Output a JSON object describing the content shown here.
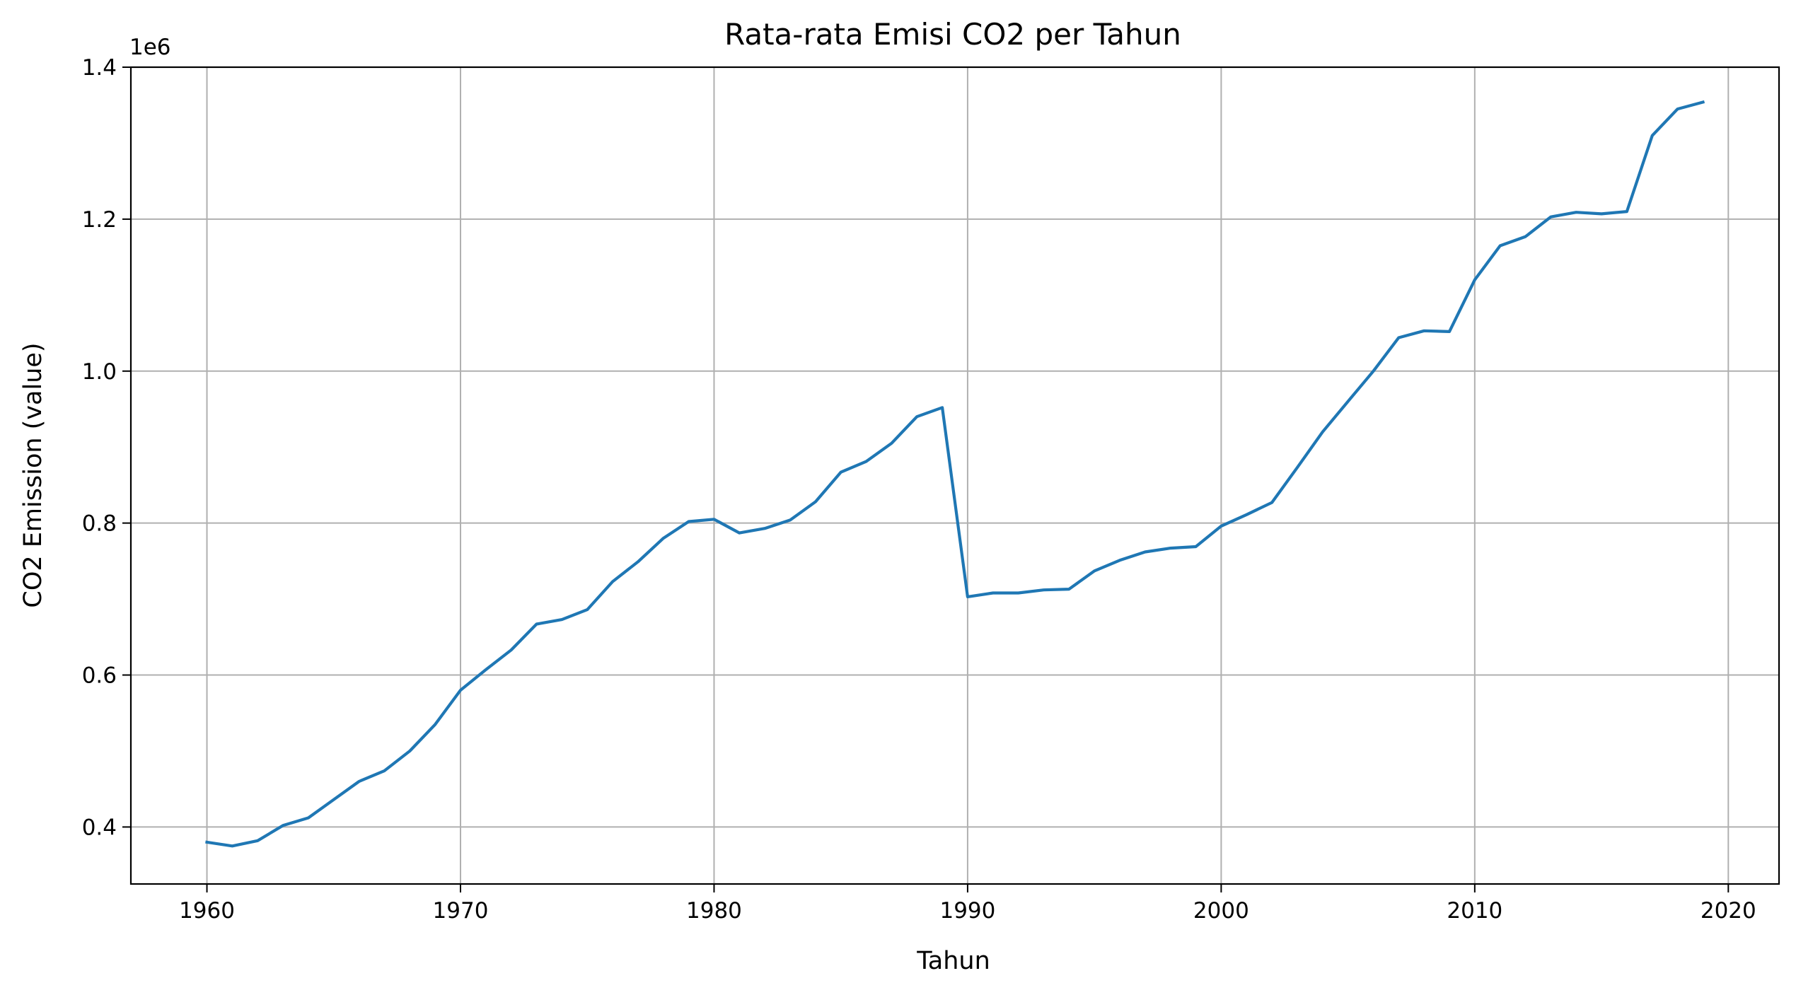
{
  "chart_data": {
    "type": "line",
    "title": "Rata-rata Emisi CO2 per Tahun",
    "xlabel": "Tahun",
    "ylabel": "CO2 Emission (value)",
    "y_offset_label": "1e6",
    "xlim": [
      1957,
      2022
    ],
    "ylim": [
      0.325,
      1.4
    ],
    "x_ticks": [
      1960,
      1970,
      1980,
      1990,
      2000,
      2010,
      2020
    ],
    "x_tick_labels": [
      "1960",
      "1970",
      "1980",
      "1990",
      "2000",
      "2010",
      "2020"
    ],
    "y_ticks": [
      0.4,
      0.6,
      0.8,
      1.0,
      1.2,
      1.4
    ],
    "y_tick_labels": [
      "0.4",
      "0.6",
      "0.8",
      "1.0",
      "1.2",
      "1.4"
    ],
    "grid": true,
    "line_color": "#1f77b4",
    "x": [
      1960,
      1961,
      1962,
      1963,
      1964,
      1965,
      1966,
      1967,
      1968,
      1969,
      1970,
      1971,
      1972,
      1973,
      1974,
      1975,
      1976,
      1977,
      1978,
      1979,
      1980,
      1981,
      1982,
      1983,
      1984,
      1985,
      1986,
      1987,
      1988,
      1989,
      1990,
      1991,
      1992,
      1993,
      1994,
      1995,
      1996,
      1997,
      1998,
      1999,
      2000,
      2001,
      2002,
      2003,
      2004,
      2005,
      2006,
      2007,
      2008,
      2009,
      2010,
      2011,
      2012,
      2013,
      2014,
      2015,
      2016,
      2017,
      2018,
      2019
    ],
    "values": [
      0.38,
      0.375,
      0.382,
      0.402,
      0.412,
      0.436,
      0.46,
      0.474,
      0.5,
      0.535,
      0.58,
      0.607,
      0.633,
      0.667,
      0.673,
      0.686,
      0.723,
      0.749,
      0.78,
      0.802,
      0.805,
      0.787,
      0.793,
      0.804,
      0.828,
      0.867,
      0.881,
      0.905,
      0.94,
      0.952,
      0.703,
      0.708,
      0.708,
      0.712,
      0.713,
      0.737,
      0.751,
      0.762,
      0.767,
      0.769,
      0.796,
      0.811,
      0.827,
      0.873,
      0.92,
      0.96,
      1.0,
      1.044,
      1.053,
      1.052,
      1.12,
      1.165,
      1.177,
      1.203,
      1.209,
      1.207,
      1.21,
      1.31,
      1.345,
      1.354
    ]
  }
}
